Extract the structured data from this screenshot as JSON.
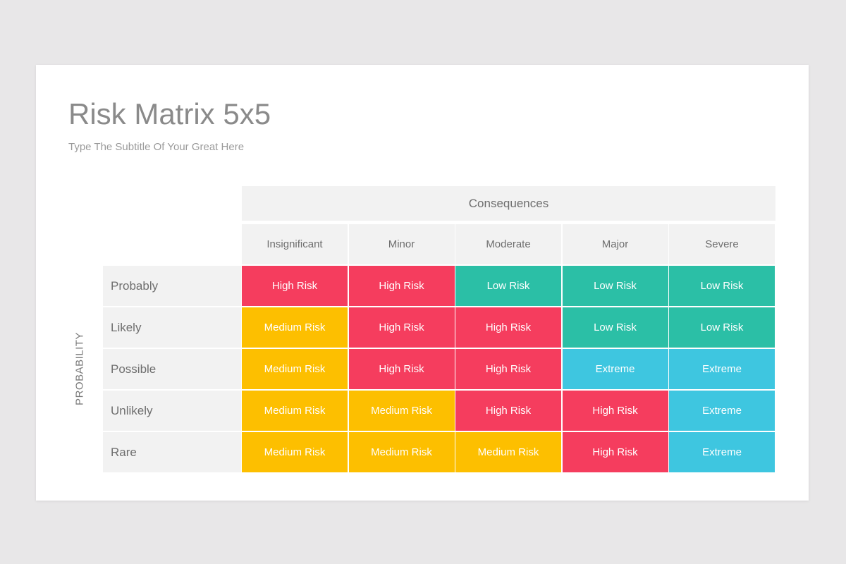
{
  "title": "Risk Matrix 5x5",
  "subtitle": "Type The Subtitle Of Your Great Here",
  "consequences_label": "Consequences",
  "probability_label": "PROBABILITY",
  "columns": [
    "Insignificant",
    "Minor",
    "Moderate",
    "Major",
    "Severe"
  ],
  "rows": [
    {
      "label": "Probably",
      "cells": [
        "High Risk",
        "High Risk",
        "Low Risk",
        "Low Risk",
        "Low Risk"
      ]
    },
    {
      "label": "Likely",
      "cells": [
        "Medium Risk",
        "High Risk",
        "High Risk",
        "Low Risk",
        "Low Risk"
      ]
    },
    {
      "label": "Possible",
      "cells": [
        "Medium Risk",
        "High Risk",
        "High Risk",
        "Extreme",
        "Extreme"
      ]
    },
    {
      "label": "Unlikely",
      "cells": [
        "Medium Risk",
        "Medium Risk",
        "High Risk",
        "High Risk",
        "Extreme"
      ]
    },
    {
      "label": "Rare",
      "cells": [
        "Medium Risk",
        "Medium Risk",
        "Medium Risk",
        "High Risk",
        "Extreme"
      ]
    }
  ],
  "colors": {
    "High Risk": "#f53d5e",
    "Medium Risk": "#fdbf00",
    "Low Risk": "#2bbfa6",
    "Extreme": "#3ec6e0"
  }
}
